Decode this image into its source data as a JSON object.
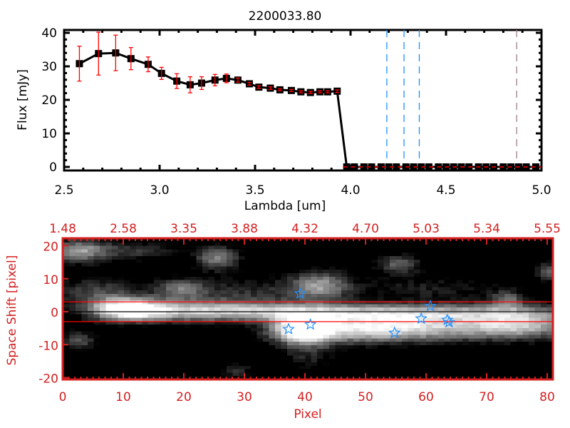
{
  "chart_data": [
    {
      "type": "line",
      "title": "2200033.80",
      "xlabel": "Lambda [um]",
      "ylabel": "Flux [mJy]",
      "xlim": [
        2.5,
        5.0
      ],
      "ylim": [
        -1,
        41
      ],
      "xticks": [
        "2.5",
        "3.0",
        "3.5",
        "4.0",
        "4.5",
        "5.0"
      ],
      "yticks": [
        "0",
        "10",
        "20",
        "30",
        "40"
      ],
      "grid": false,
      "x": [
        2.58,
        2.68,
        2.77,
        2.85,
        2.94,
        3.01,
        3.09,
        3.16,
        3.22,
        3.29,
        3.35,
        3.41,
        3.47,
        3.52,
        3.58,
        3.63,
        3.69,
        3.74,
        3.79,
        3.84,
        3.88,
        3.93,
        3.98,
        4.02,
        4.07,
        4.11,
        4.16,
        4.2,
        4.24,
        4.29,
        4.33,
        4.37,
        4.41,
        4.46,
        4.5,
        4.54,
        4.58,
        4.62,
        4.67,
        4.71,
        4.75,
        4.8,
        4.84,
        4.88,
        4.92,
        4.97
      ],
      "y": [
        30.8,
        33.8,
        34.0,
        32.3,
        30.6,
        27.9,
        25.6,
        24.5,
        25.0,
        25.9,
        26.4,
        25.9,
        24.8,
        23.8,
        23.5,
        23.0,
        22.8,
        22.4,
        22.2,
        22.4,
        22.4,
        22.6,
        0,
        0,
        0,
        0,
        0,
        0,
        0,
        0,
        0,
        0,
        0,
        0,
        0,
        0,
        0,
        0,
        0,
        0,
        0,
        0,
        0,
        0,
        0,
        0
      ],
      "yerr": [
        5.2,
        6.4,
        5.3,
        3.3,
        2.2,
        1.8,
        2.2,
        2.4,
        1.9,
        1.7,
        1.3,
        0.6,
        0.4,
        0.4,
        0.4,
        0.3,
        0.3,
        0.3,
        0.3,
        0.3,
        0.3,
        0.4,
        0,
        0,
        0,
        0,
        0,
        0,
        0,
        0,
        0,
        0,
        0,
        0,
        0,
        0,
        0,
        0,
        0,
        0,
        0,
        0,
        0,
        0,
        0,
        0
      ],
      "marker_color": "#000000",
      "errorbar_color": "#ff0000",
      "zero_line": {
        "y": 0,
        "color": "#ff0000",
        "style": "dashed"
      },
      "vlines": [
        {
          "x": 4.19,
          "color": "#1e90ff",
          "style": "dashed"
        },
        {
          "x": 4.28,
          "color": "#1e90ff",
          "style": "dashed"
        },
        {
          "x": 4.36,
          "color": "#1e90ff",
          "style": "dashed"
        },
        {
          "x": 4.87,
          "color": "#a08080",
          "style": "dashed"
        }
      ]
    },
    {
      "type": "heatmap",
      "colormap": "grayscale",
      "xlabel": "Pixel",
      "ylabel": "Space Shift [pixel]",
      "xlim": [
        0,
        81
      ],
      "ylim": [
        -21,
        21
      ],
      "xticks": [
        "0",
        "10",
        "20",
        "30",
        "40",
        "50",
        "60",
        "70",
        "80"
      ],
      "yticks": [
        "20",
        "10",
        "0",
        "-10",
        "-20"
      ],
      "top_axis_ticks": [
        "1.48",
        "2.58",
        "3.35",
        "3.88",
        "4.32",
        "4.70",
        "5.03",
        "5.34",
        "5.55"
      ],
      "axis_color": "#d42020",
      "hlines": [
        {
          "y": 3,
          "color": "#ff0000"
        },
        {
          "y": 0,
          "color": "#000000"
        },
        {
          "y": -3,
          "color": "#ff0000"
        }
      ],
      "star_markers": {
        "color": "#1e90ff",
        "points": [
          [
            39.2,
            5.5
          ],
          [
            60.7,
            1.7
          ],
          [
            59.2,
            -2.1
          ],
          [
            63.5,
            -2.5
          ],
          [
            63.8,
            -3.2
          ],
          [
            37.3,
            -5.3
          ],
          [
            40.9,
            -3.9
          ],
          [
            54.8,
            -6.4
          ]
        ]
      }
    }
  ]
}
